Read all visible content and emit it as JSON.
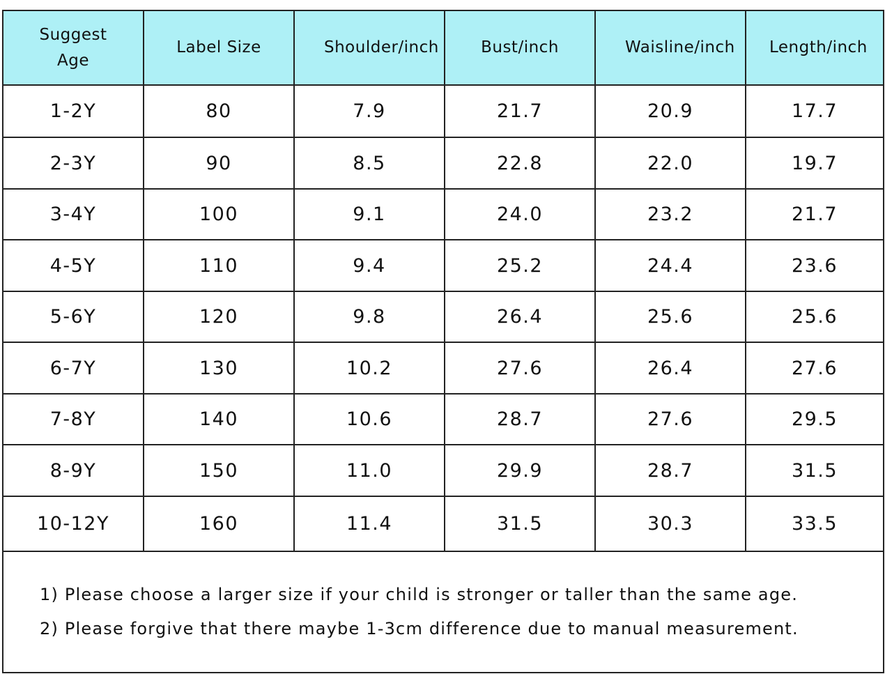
{
  "table": {
    "headers": [
      "Suggest Age",
      "Label Size",
      "Shoulder/inch",
      "Bust/inch",
      "Waisline/inch",
      "Length/inch"
    ],
    "rows": [
      [
        "1-2Y",
        "80",
        "7.9",
        "21.7",
        "20.9",
        "17.7"
      ],
      [
        "2-3Y",
        "90",
        "8.5",
        "22.8",
        "22.0",
        "19.7"
      ],
      [
        "3-4Y",
        "100",
        "9.1",
        "24.0",
        "23.2",
        "21.7"
      ],
      [
        "4-5Y",
        "110",
        "9.4",
        "25.2",
        "24.4",
        "23.6"
      ],
      [
        "5-6Y",
        "120",
        "9.8",
        "26.4",
        "25.6",
        "25.6"
      ],
      [
        "6-7Y",
        "130",
        "10.2",
        "27.6",
        "26.4",
        "27.6"
      ],
      [
        "7-8Y",
        "140",
        "10.6",
        "28.7",
        "27.6",
        "29.5"
      ],
      [
        "8-9Y",
        "150",
        "11.0",
        "29.9",
        "28.7",
        "31.5"
      ],
      [
        "10-12Y",
        "160",
        "11.4",
        "31.5",
        "30.3",
        "33.5"
      ]
    ],
    "notes": [
      "1) Please choose a larger size if your child is stronger or taller than the same age.",
      "2) Please forgive that there maybe 1-3cm difference due to manual measurement."
    ]
  }
}
